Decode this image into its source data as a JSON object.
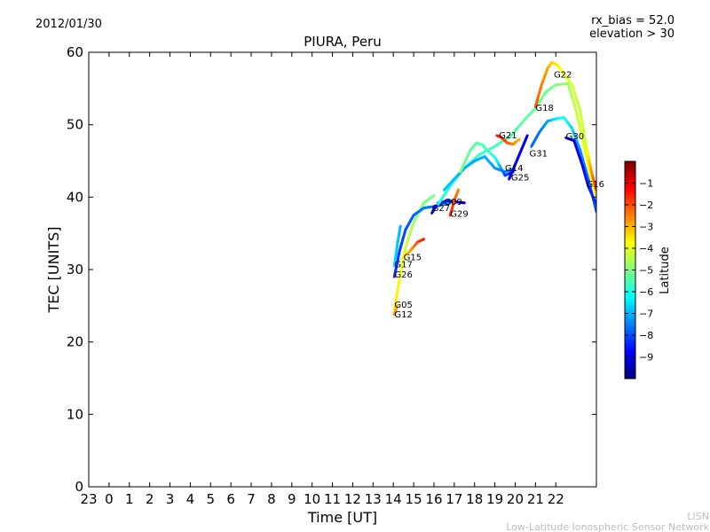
{
  "chart_data": {
    "type": "line",
    "date": "2012/01/30",
    "title": "PIURA, Peru",
    "rx_bias": "rx_bias = 52.0",
    "elevation": "elevation > 30",
    "xlabel": "Time [UT]",
    "ylabel": "TEC [UNITS]",
    "xlim": [
      -1,
      24
    ],
    "ylim": [
      0,
      60
    ],
    "xticks": [
      -1,
      0,
      1,
      2,
      3,
      4,
      5,
      6,
      7,
      8,
      9,
      10,
      11,
      12,
      13,
      14,
      15,
      16,
      17,
      18,
      19,
      20,
      21,
      22
    ],
    "xtick_labels": [
      "23",
      "0",
      "1",
      "2",
      "3",
      "4",
      "5",
      "6",
      "7",
      "8",
      "9",
      "10",
      "11",
      "12",
      "13",
      "14",
      "15",
      "16",
      "17",
      "18",
      "19",
      "20",
      "21",
      "22"
    ],
    "yticks": [
      0,
      10,
      20,
      30,
      40,
      50,
      60
    ],
    "ytick_labels": [
      "0",
      "10",
      "20",
      "30",
      "40",
      "50",
      "60"
    ],
    "colorbar": {
      "label": "Latitude",
      "range": [
        -10,
        0
      ],
      "ticks": [
        -1,
        -2,
        -3,
        -4,
        -5,
        -6,
        -7,
        -8,
        -9
      ],
      "tick_labels": [
        "−1",
        "−2",
        "−3",
        "−4",
        "−5",
        "−6",
        "−7",
        "−8",
        "−9"
      ]
    },
    "series": [
      {
        "name": "G05",
        "label": {
          "x": 14.05,
          "y": 25.2
        },
        "points": [
          [
            14.05,
            24.5,
            -3.5
          ],
          [
            14.3,
            28.5,
            -3.7
          ],
          [
            14.6,
            33,
            -4.2
          ],
          [
            15.0,
            36.5,
            -4.6
          ],
          [
            15.5,
            39.2,
            -5
          ],
          [
            16.0,
            40.2,
            -5.1
          ]
        ]
      },
      {
        "name": "G12",
        "label": {
          "x": 14.05,
          "y": 23.9
        },
        "points": [
          [
            14.05,
            23.8,
            -2.4
          ],
          [
            14.2,
            25,
            -3
          ]
        ]
      },
      {
        "name": "G26",
        "label": {
          "x": 14.05,
          "y": 29.4
        },
        "points": [
          [
            14.05,
            29,
            -8.3
          ],
          [
            14.3,
            32.5,
            -8.2
          ],
          [
            14.6,
            35.5,
            -8
          ],
          [
            15.0,
            37.5,
            -7.8
          ],
          [
            15.5,
            38.5,
            -7.6
          ],
          [
            16.2,
            38.8,
            -7.5
          ],
          [
            16.8,
            39.2,
            -7.3
          ]
        ]
      },
      {
        "name": "G17",
        "label": {
          "x": 14.05,
          "y": 30.8
        },
        "points": [
          [
            14.05,
            30.5,
            -6.6
          ],
          [
            14.2,
            33.5,
            -6.8
          ],
          [
            14.35,
            36,
            -7.0
          ]
        ]
      },
      {
        "name": "G15",
        "label": {
          "x": 14.5,
          "y": 31.8
        },
        "points": [
          [
            14.4,
            31.5,
            -4
          ],
          [
            14.8,
            32.5,
            -3
          ],
          [
            15.2,
            33.8,
            -2
          ],
          [
            15.5,
            34.2,
            -1.5
          ]
        ]
      },
      {
        "name": "G27",
        "label": {
          "x": 15.9,
          "y": 38.6
        },
        "points": [
          [
            15.9,
            37.8,
            -9
          ],
          [
            16.1,
            38.8,
            -9
          ],
          [
            16.4,
            39.2,
            -9.2
          ]
        ]
      },
      {
        "name": "G09",
        "label": {
          "x": 16.5,
          "y": 39.4
        },
        "points": [
          [
            16.2,
            39.2,
            -8
          ],
          [
            16.7,
            39.5,
            -8.4
          ],
          [
            17.2,
            39.3,
            -9
          ],
          [
            17.5,
            39.2,
            -9.3
          ]
        ]
      },
      {
        "name": "G29",
        "label": {
          "x": 16.8,
          "y": 37.8
        },
        "points": [
          [
            16.8,
            37.5,
            -1.5
          ],
          [
            17.0,
            39.5,
            -2
          ],
          [
            17.2,
            41,
            -2.5
          ]
        ]
      },
      {
        "name": "G18",
        "label": {
          "x": 21.0,
          "y": 52.4
        },
        "points": [
          [
            16.2,
            39,
            -6
          ],
          [
            16.8,
            41.5,
            -5.8
          ],
          [
            17.5,
            44,
            -5.7
          ],
          [
            18.2,
            45.8,
            -5.7
          ],
          [
            19.0,
            47,
            -5.6
          ],
          [
            19.8,
            48.5,
            -5.5
          ],
          [
            20.5,
            50.8,
            -5.3
          ],
          [
            21.0,
            52.3,
            -5.3
          ],
          [
            21.5,
            54.5,
            -5.2
          ],
          [
            22.0,
            55.5,
            -5
          ],
          [
            22.6,
            55.7,
            -4.8
          ],
          [
            23.0,
            52,
            -4.3
          ],
          [
            23.4,
            47,
            -4
          ],
          [
            23.7,
            43,
            -3.8
          ],
          [
            24.0,
            40,
            -3.5
          ]
        ]
      },
      {
        "name": "G21",
        "label": {
          "x": 19.2,
          "y": 48.6
        },
        "points": [
          [
            19.1,
            48.5,
            -1.5
          ],
          [
            19.3,
            48.3,
            -1.6
          ],
          [
            19.6,
            47.5,
            -2
          ],
          [
            19.9,
            47.3,
            -2.5
          ],
          [
            20.2,
            48,
            -3
          ]
        ]
      },
      {
        "name": "G14",
        "label": {
          "x": 19.5,
          "y": 44.1
        },
        "points": [
          [
            16.5,
            41,
            -6.8
          ],
          [
            17.0,
            42.5,
            -6.9
          ],
          [
            17.5,
            44,
            -7
          ],
          [
            18.0,
            45,
            -7.1
          ],
          [
            18.5,
            45.6,
            -7
          ],
          [
            19.0,
            44,
            -7.2
          ],
          [
            19.5,
            43.5,
            -7.4
          ],
          [
            19.8,
            43.8,
            -7.4
          ]
        ]
      },
      {
        "name": "G25",
        "label": {
          "x": 19.8,
          "y": 42.8
        },
        "points": [
          [
            17.3,
            43.5,
            -5
          ],
          [
            17.8,
            46.5,
            -5.3
          ],
          [
            18.1,
            47.5,
            -5.4
          ],
          [
            18.4,
            47.2,
            -5.5
          ],
          [
            18.6,
            46.5,
            -5.6
          ],
          [
            19.0,
            45.5,
            -5.8
          ],
          [
            19.5,
            43,
            -8
          ],
          [
            19.9,
            43.5,
            -8.5
          ]
        ]
      },
      {
        "name": "G31",
        "label": {
          "x": 20.7,
          "y": 46.1
        },
        "points": [
          [
            19.7,
            42.5,
            -9.1
          ],
          [
            20.0,
            44.5,
            -9.0
          ],
          [
            20.3,
            46.5,
            -8.9
          ],
          [
            20.6,
            48.5,
            -8.8
          ]
        ]
      },
      {
        "name": "G22",
        "label": {
          "x": 21.9,
          "y": 57.0
        },
        "points": [
          [
            21.0,
            52.5,
            -2
          ],
          [
            21.3,
            55.5,
            -2.5
          ],
          [
            21.6,
            57.8,
            -2.8
          ],
          [
            21.8,
            58.6,
            -3.2
          ],
          [
            22.1,
            58.2,
            -3.6
          ],
          [
            22.4,
            57,
            -3.9
          ],
          [
            22.8,
            55.5,
            -4.1
          ],
          [
            23.2,
            52,
            -4.3
          ],
          [
            23.5,
            47,
            -4.2
          ],
          [
            23.8,
            43,
            -2.5
          ],
          [
            24.0,
            41,
            -1.5
          ]
        ]
      },
      {
        "name": "G30",
        "label": {
          "x": 22.5,
          "y": 48.5
        },
        "points": [
          [
            20.8,
            47,
            -7.8
          ],
          [
            21.2,
            49,
            -7.6
          ],
          [
            21.6,
            50.5,
            -7.2
          ],
          [
            22.0,
            50.8,
            -6.5
          ],
          [
            22.4,
            51,
            -6
          ],
          [
            22.8,
            49.5,
            -6.6
          ],
          [
            23.2,
            46.5,
            -7.3
          ],
          [
            23.6,
            42.5,
            -7.6
          ],
          [
            24.0,
            38,
            -7.9
          ]
        ]
      },
      {
        "name": "G16",
        "label": {
          "x": 23.5,
          "y": 41.9
        },
        "points": [
          [
            22.5,
            48.2,
            -9.3
          ],
          [
            22.9,
            47.8,
            -9.1
          ],
          [
            23.3,
            44.5,
            -8.8
          ],
          [
            23.6,
            41.5,
            -8.5
          ],
          [
            24.0,
            39,
            -8.3
          ]
        ]
      }
    ]
  },
  "watermark": {
    "line1": "LISN",
    "line2": "Low-Latitude Ionospheric Sensor Network"
  }
}
